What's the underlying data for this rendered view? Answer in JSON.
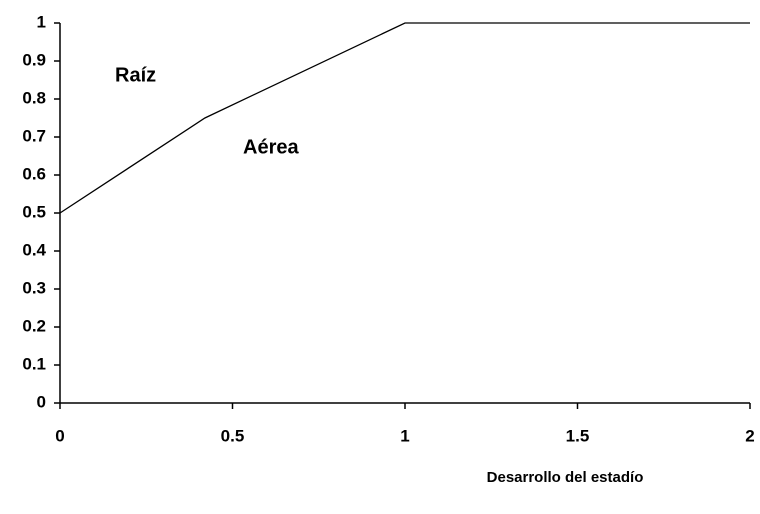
{
  "chart_data": {
    "type": "line",
    "x": [
      0,
      0.42,
      1,
      2
    ],
    "series": [
      {
        "color": "#000000",
        "values": [
          0.5,
          0.75,
          1,
          1
        ]
      }
    ],
    "xlim": [
      0,
      2
    ],
    "xticks": [
      0,
      0.5,
      1,
      1.5,
      2
    ],
    "ylim": [
      0,
      1
    ],
    "yticks": [
      0,
      0.1,
      0.2,
      0.3,
      0.4,
      0.5,
      0.6,
      0.7,
      0.8,
      0.9,
      1
    ],
    "x_label": "Desarrollo del estadío",
    "annotations": [
      "Raíz",
      "Aérea"
    ],
    "grid": false
  }
}
